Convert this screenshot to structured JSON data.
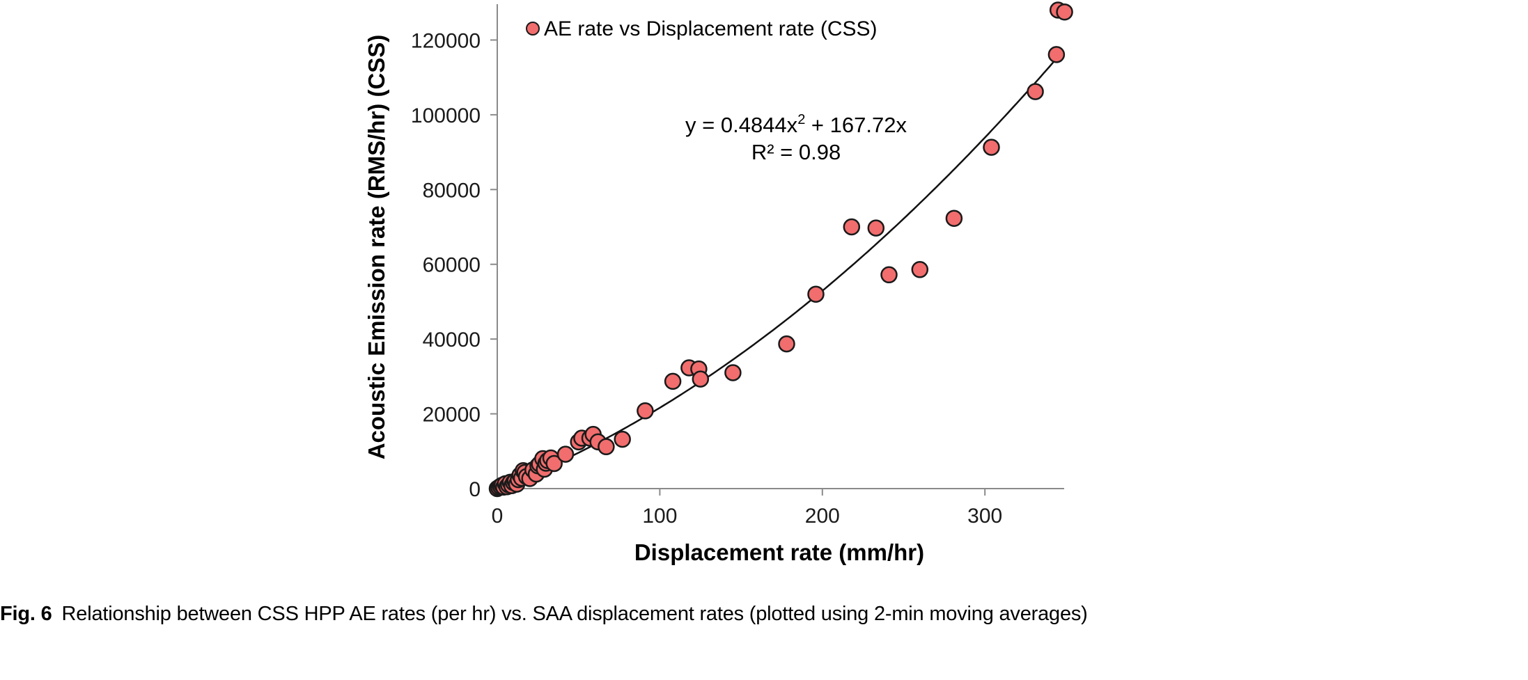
{
  "chart_data": {
    "type": "scatter",
    "xlabel": "Displacement rate (mm/hr)",
    "ylabel": "Acoustic Emission rate (RMS/hr) (CSS)",
    "xlim": [
      0,
      350
    ],
    "ylim": [
      0,
      130000
    ],
    "x_ticks": [
      0,
      100,
      200,
      300
    ],
    "y_ticks": [
      0,
      20000,
      40000,
      60000,
      80000,
      100000,
      120000
    ],
    "legend": {
      "position": "top-left",
      "label": "AE rate vs Displacement rate (CSS)"
    },
    "marker_color": "#f26d6d",
    "marker_edge_color": "#1a1a1a",
    "trendline": {
      "type": "polynomial",
      "a2": 0.4844,
      "a1": 167.72,
      "equation": "y = 0.4844x² + 167.72x",
      "r2_text": "R² = 0.98"
    },
    "series": [
      {
        "name": "AE rate vs Displacement rate (CSS)",
        "points": [
          [
            0,
            0
          ],
          [
            1,
            300
          ],
          [
            2,
            600
          ],
          [
            3,
            900
          ],
          [
            4,
            400
          ],
          [
            5,
            1300
          ],
          [
            6,
            500
          ],
          [
            7,
            1000
          ],
          [
            8,
            1700
          ],
          [
            9,
            800
          ],
          [
            10,
            1600
          ],
          [
            11,
            2000
          ],
          [
            12,
            1200
          ],
          [
            13,
            2400
          ],
          [
            14,
            3600
          ],
          [
            15,
            2800
          ],
          [
            16,
            4800
          ],
          [
            17,
            4300
          ],
          [
            18,
            3200
          ],
          [
            20,
            2700
          ],
          [
            22,
            5000
          ],
          [
            24,
            3900
          ],
          [
            25,
            6100
          ],
          [
            26,
            6600
          ],
          [
            28,
            8000
          ],
          [
            29,
            5200
          ],
          [
            30,
            6800
          ],
          [
            31,
            7500
          ],
          [
            33,
            8200
          ],
          [
            35,
            6700
          ],
          [
            42,
            9200
          ],
          [
            50,
            12500
          ],
          [
            52,
            13500
          ],
          [
            57,
            13500
          ],
          [
            59,
            14500
          ],
          [
            62,
            12500
          ],
          [
            67,
            11200
          ],
          [
            77,
            13200
          ],
          [
            91,
            20800
          ],
          [
            108,
            28700
          ],
          [
            118,
            32300
          ],
          [
            124,
            32000
          ],
          [
            125,
            29300
          ],
          [
            145,
            31000
          ],
          [
            178,
            38700
          ],
          [
            196,
            52000
          ],
          [
            218,
            70000
          ],
          [
            233,
            69700
          ],
          [
            241,
            57200
          ],
          [
            260,
            58600
          ],
          [
            281,
            72300
          ],
          [
            304,
            91300
          ],
          [
            331,
            106200
          ],
          [
            344,
            116100
          ],
          [
            345,
            128000
          ],
          [
            349,
            127500
          ]
        ]
      }
    ]
  },
  "caption": {
    "label": "Fig. 6",
    "text": "Relationship between CSS HPP AE rates (per hr) vs. SAA displacement rates (plotted using 2-min moving averages)"
  }
}
